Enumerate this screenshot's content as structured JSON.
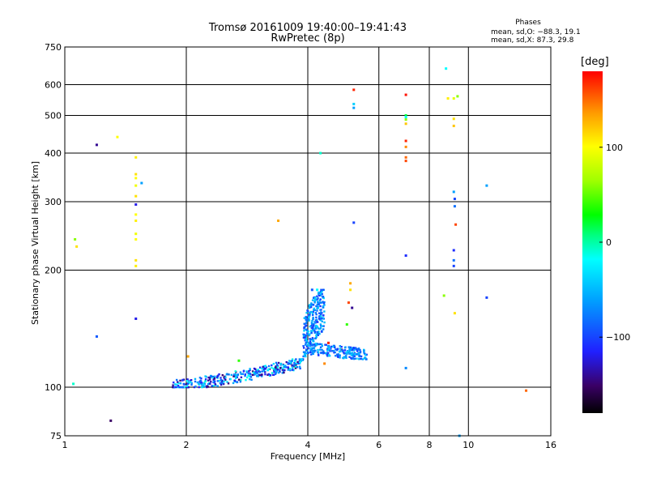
{
  "header": {
    "title_line1": "Tromsø 20161009 19:40:00–19:41:43",
    "title_line2": "RwPretec (8p)"
  },
  "phase_box": {
    "heading": "Phases",
    "line_o": "mean, sd,O: −88.3, 19.1",
    "line_x": "mean, sd,X:  87.3, 29.8"
  },
  "colorbar": {
    "unit_label": "[deg]",
    "ticks": [
      "100",
      "0",
      "−100"
    ],
    "tick_values": [
      100,
      0,
      -100
    ],
    "range": [
      -180,
      180
    ]
  },
  "chart_data": {
    "type": "scatter",
    "title": "Tromsø 20161009 19:40:00–19:41:43",
    "subtitle": "RwPretec (8p)",
    "xlabel": "Frequency [MHz]",
    "ylabel": "Stationary phase Virtual Height [km]",
    "x_scale": "log",
    "y_scale": "log",
    "xlim": [
      1,
      16
    ],
    "ylim": [
      75,
      750
    ],
    "x_ticks": [
      1,
      2,
      4,
      6,
      8,
      10,
      16
    ],
    "x_tick_labels": [
      "1",
      "2",
      "4",
      "6",
      "8",
      "10",
      "16"
    ],
    "y_ticks": [
      75,
      100,
      200,
      300,
      400,
      500,
      600,
      750
    ],
    "y_tick_labels": [
      "75",
      "100",
      "200",
      "300",
      "400",
      "500",
      "600",
      "750"
    ],
    "grid": true,
    "color_key": "phase [deg]",
    "colors": {
      "axes": "#000000",
      "colormap": [
        "#000000",
        "#3a0066",
        "#2020ff",
        "#00a0ff",
        "#00ffff",
        "#00ff80",
        "#00ff00",
        "#a0ff00",
        "#ffff00",
        "#ff9900",
        "#ff0000"
      ]
    },
    "points": [
      {
        "x": 1.05,
        "y": 102,
        "p": -10
      },
      {
        "x": 1.06,
        "y": 240,
        "p": 60
      },
      {
        "x": 1.07,
        "y": 230,
        "p": 110
      },
      {
        "x": 1.2,
        "y": 135,
        "p": -90
      },
      {
        "x": 1.2,
        "y": 420,
        "p": -140
      },
      {
        "x": 1.3,
        "y": 82,
        "p": -150
      },
      {
        "x": 1.35,
        "y": 440,
        "p": 100
      },
      {
        "x": 1.5,
        "y": 150,
        "p": -120
      },
      {
        "x": 1.5,
        "y": 205,
        "p": 105
      },
      {
        "x": 1.5,
        "y": 212,
        "p": 110
      },
      {
        "x": 1.5,
        "y": 240,
        "p": 100
      },
      {
        "x": 1.5,
        "y": 248,
        "p": 95
      },
      {
        "x": 1.5,
        "y": 268,
        "p": 105
      },
      {
        "x": 1.5,
        "y": 278,
        "p": 100
      },
      {
        "x": 1.5,
        "y": 295,
        "p": -120
      },
      {
        "x": 1.5,
        "y": 310,
        "p": 110
      },
      {
        "x": 1.5,
        "y": 330,
        "p": 95
      },
      {
        "x": 1.5,
        "y": 345,
        "p": 100
      },
      {
        "x": 1.5,
        "y": 353,
        "p": 110
      },
      {
        "x": 1.5,
        "y": 390,
        "p": 105
      },
      {
        "x": 1.55,
        "y": 335,
        "p": -60
      },
      {
        "x": 2.02,
        "y": 120,
        "p": 130
      },
      {
        "x": 2.7,
        "y": 117,
        "p": 40
      },
      {
        "x": 3.38,
        "y": 268,
        "p": 130
      },
      {
        "x": 4.1,
        "y": 178,
        "p": -90
      },
      {
        "x": 4.22,
        "y": 178,
        "p": -20
      },
      {
        "x": 4.3,
        "y": 400,
        "p": -10
      },
      {
        "x": 4.4,
        "y": 115,
        "p": 140
      },
      {
        "x": 4.5,
        "y": 130,
        "p": 170
      },
      {
        "x": 4.85,
        "y": 125,
        "p": 120
      },
      {
        "x": 5.0,
        "y": 145,
        "p": 40
      },
      {
        "x": 5.05,
        "y": 165,
        "p": 160
      },
      {
        "x": 5.1,
        "y": 185,
        "p": 130
      },
      {
        "x": 5.1,
        "y": 178,
        "p": 110
      },
      {
        "x": 5.15,
        "y": 160,
        "p": -140
      },
      {
        "x": 5.2,
        "y": 582,
        "p": 170
      },
      {
        "x": 5.2,
        "y": 535,
        "p": -40
      },
      {
        "x": 5.2,
        "y": 523,
        "p": -60
      },
      {
        "x": 5.2,
        "y": 265,
        "p": -100
      },
      {
        "x": 7.0,
        "y": 565,
        "p": 175
      },
      {
        "x": 7.0,
        "y": 500,
        "p": 20
      },
      {
        "x": 7.0,
        "y": 495,
        "p": -20
      },
      {
        "x": 7.0,
        "y": 488,
        "p": 60
      },
      {
        "x": 7.0,
        "y": 476,
        "p": 120
      },
      {
        "x": 7.0,
        "y": 430,
        "p": 170
      },
      {
        "x": 7.0,
        "y": 415,
        "p": 140
      },
      {
        "x": 7.0,
        "y": 390,
        "p": 150
      },
      {
        "x": 7.0,
        "y": 382,
        "p": 160
      },
      {
        "x": 7.0,
        "y": 218,
        "p": -110
      },
      {
        "x": 7.0,
        "y": 112,
        "p": -70
      },
      {
        "x": 8.7,
        "y": 172,
        "p": 60
      },
      {
        "x": 8.8,
        "y": 660,
        "p": -20
      },
      {
        "x": 8.9,
        "y": 553,
        "p": 105
      },
      {
        "x": 9.2,
        "y": 553,
        "p": 90
      },
      {
        "x": 9.4,
        "y": 560,
        "p": 60
      },
      {
        "x": 9.2,
        "y": 490,
        "p": 110
      },
      {
        "x": 9.2,
        "y": 470,
        "p": 120
      },
      {
        "x": 9.2,
        "y": 318,
        "p": -60
      },
      {
        "x": 9.25,
        "y": 305,
        "p": -100
      },
      {
        "x": 9.25,
        "y": 292,
        "p": -80
      },
      {
        "x": 9.3,
        "y": 262,
        "p": 160
      },
      {
        "x": 9.2,
        "y": 225,
        "p": -110
      },
      {
        "x": 9.2,
        "y": 212,
        "p": -80
      },
      {
        "x": 9.2,
        "y": 205,
        "p": -100
      },
      {
        "x": 9.25,
        "y": 155,
        "p": 110
      },
      {
        "x": 9.5,
        "y": 75,
        "p": -60
      },
      {
        "x": 11.1,
        "y": 330,
        "p": -60
      },
      {
        "x": 11.1,
        "y": 170,
        "p": -100
      },
      {
        "x": 13.9,
        "y": 98,
        "p": 150
      }
    ],
    "traces": [
      {
        "name": "",
        "x_range": [
          1.85,
          3.9
        ],
        "y_range": [
          100,
          118
        ],
        "y_at_start": 101,
        "y_at_end": 116,
        "phase_range": [
          -150,
          -10
        ],
        "count": 360
      },
      {
        "name": "",
        "x_range": [
          3.9,
          4.4
        ],
        "y_range": [
          120,
          178
        ],
        "y_at_start": 125,
        "y_at_end": 160,
        "phase_range": [
          -110,
          -30
        ],
        "count": 260
      },
      {
        "name": "",
        "x_range": [
          4.0,
          5.6
        ],
        "y_range": [
          118,
          130
        ],
        "y_at_start": 126,
        "y_at_end": 121,
        "phase_range": [
          -110,
          -40
        ],
        "count": 200
      }
    ]
  }
}
